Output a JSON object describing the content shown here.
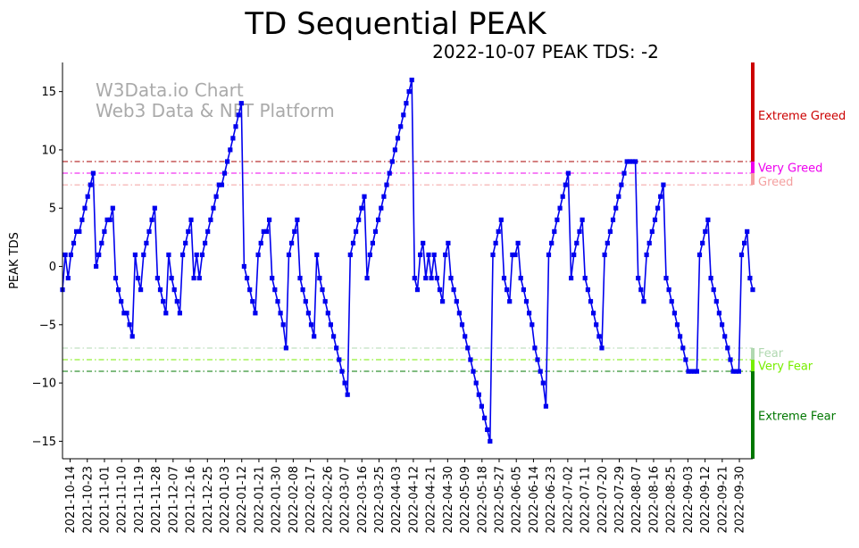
{
  "chart_data": {
    "type": "line",
    "title": "TD Sequential PEAK",
    "subtitle": "2022-10-07 PEAK TDS: -2",
    "watermark": [
      "W3Data.io Chart",
      "Web3 Data & NFT Platform"
    ],
    "xlabel": "",
    "ylabel": "PEAK TDS",
    "ylim": [
      -16.5,
      17.5
    ],
    "yticks": [
      -15,
      -10,
      -5,
      0,
      5,
      10,
      15
    ],
    "grid": false,
    "series_color": "#0000ee",
    "x_start": "2021-10-10",
    "x_end": "2022-10-07",
    "xtick_labels": [
      "2021-10-14",
      "2021-10-23",
      "2021-11-01",
      "2021-11-10",
      "2021-11-19",
      "2021-11-28",
      "2021-12-07",
      "2021-12-16",
      "2021-12-25",
      "2022-01-03",
      "2022-01-12",
      "2022-01-21",
      "2022-01-30",
      "2022-02-08",
      "2022-02-17",
      "2022-02-26",
      "2022-03-07",
      "2022-03-16",
      "2022-03-25",
      "2022-04-03",
      "2022-04-12",
      "2022-04-21",
      "2022-04-30",
      "2022-05-09",
      "2022-05-18",
      "2022-05-27",
      "2022-06-05",
      "2022-06-14",
      "2022-06-23",
      "2022-07-02",
      "2022-07-11",
      "2022-07-20",
      "2022-07-29",
      "2022-08-07",
      "2022-08-16",
      "2022-08-25",
      "2022-09-03",
      "2022-09-12",
      "2022-09-21",
      "2022-09-30"
    ],
    "values": [
      -2,
      1,
      -1,
      1,
      2,
      3,
      3,
      4,
      5,
      6,
      7,
      8,
      0,
      1,
      2,
      3,
      4,
      4,
      5,
      -1,
      -2,
      -3,
      -4,
      -4,
      -5,
      -6,
      1,
      -1,
      -2,
      1,
      2,
      3,
      4,
      5,
      -1,
      -2,
      -3,
      -4,
      1,
      -1,
      -2,
      -3,
      -4,
      1,
      2,
      3,
      4,
      -1,
      1,
      -1,
      1,
      2,
      3,
      4,
      5,
      6,
      7,
      7,
      8,
      9,
      10,
      11,
      12,
      13,
      14,
      0,
      -1,
      -2,
      -3,
      -4,
      1,
      2,
      3,
      3,
      4,
      -1,
      -2,
      -3,
      -4,
      -5,
      -7,
      1,
      2,
      3,
      4,
      -1,
      -2,
      -3,
      -4,
      -5,
      -6,
      1,
      -1,
      -2,
      -3,
      -4,
      -5,
      -6,
      -7,
      -8,
      -9,
      -10,
      -11,
      1,
      2,
      3,
      4,
      5,
      6,
      -1,
      1,
      2,
      3,
      4,
      5,
      6,
      7,
      8,
      9,
      10,
      11,
      12,
      13,
      14,
      15,
      16,
      -1,
      -2,
      1,
      2,
      -1,
      1,
      -1,
      1,
      -1,
      -2,
      -3,
      1,
      2,
      -1,
      -2,
      -3,
      -4,
      -5,
      -6,
      -7,
      -8,
      -9,
      -10,
      -11,
      -12,
      -13,
      -14,
      -15,
      1,
      2,
      3,
      4,
      -1,
      -2,
      -3,
      1,
      1,
      2,
      -1,
      -2,
      -3,
      -4,
      -5,
      -7,
      -8,
      -9,
      -10,
      -12,
      1,
      2,
      3,
      4,
      5,
      6,
      7,
      8,
      -1,
      1,
      2,
      3,
      4,
      -1,
      -2,
      -3,
      -4,
      -5,
      -6,
      -7,
      1,
      2,
      3,
      4,
      5,
      6,
      7,
      8,
      9,
      9,
      9,
      9,
      -1,
      -2,
      -3,
      1,
      2,
      3,
      4,
      5,
      6,
      7,
      -1,
      -2,
      -3,
      -4,
      -5,
      -6,
      -7,
      -8,
      -9,
      -9,
      -9,
      -9,
      1,
      2,
      3,
      4,
      -1,
      -2,
      -3,
      -4,
      -5,
      -6,
      -7,
      -8,
      -9,
      -9,
      -9,
      1,
      2,
      3,
      -1,
      -2
    ],
    "reference_lines": [
      {
        "name": "Extreme Greed",
        "value": 9,
        "color": "#aa0000"
      },
      {
        "name": "Very Greed",
        "value": 8,
        "color": "#ee00ee"
      },
      {
        "name": "Greed",
        "value": 7,
        "color": "#f4a0a0"
      },
      {
        "name": "Fear",
        "value": -7,
        "color": "#b0d8b0"
      },
      {
        "name": "Very Fear",
        "value": -8,
        "color": "#77ee00"
      },
      {
        "name": "Extreme Fear",
        "value": -9,
        "color": "#007700"
      }
    ],
    "zones": [
      {
        "label": "Extreme Greed",
        "from": 9,
        "to": 17.5,
        "color": "#cc0000",
        "label_color": "#cc0000",
        "label_at": 13
      },
      {
        "label": "Very Greed",
        "from": 8,
        "to": 9,
        "color": "#ee00ee",
        "label_color": "#ee00ee",
        "label_at": 8.5
      },
      {
        "label": "Greed",
        "from": 7,
        "to": 8,
        "color": "#f4a0a0",
        "label_color": "#f4a0a0",
        "label_at": 7.3
      },
      {
        "label": "Fear",
        "from": -8,
        "to": -7,
        "color": "#b0d8b0",
        "label_color": "#b0d8b0",
        "label_at": -7.4
      },
      {
        "label": "Very Fear",
        "from": -9,
        "to": -8,
        "color": "#77ee00",
        "label_color": "#77ee00",
        "label_at": -8.5
      },
      {
        "label": "Extreme Fear",
        "from": -16.5,
        "to": -9,
        "color": "#007700",
        "label_color": "#007700",
        "label_at": -12.8
      }
    ]
  }
}
